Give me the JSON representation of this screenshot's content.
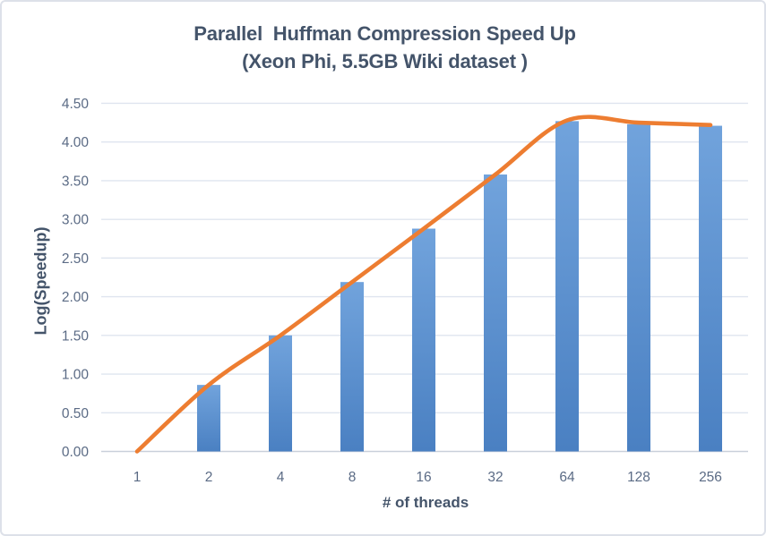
{
  "title": {
    "line1": "Parallel  Huffman Compression Speed Up",
    "line2": "(Xeon Phi, 5.5GB Wiki dataset )"
  },
  "chart_data": {
    "type": "bar",
    "title": "Parallel Huffman Compression Speed Up (Xeon Phi, 5.5GB Wiki dataset )",
    "categories": [
      "1",
      "2",
      "4",
      "8",
      "16",
      "32",
      "64",
      "128",
      "256"
    ],
    "values": [
      0.0,
      0.86,
      1.5,
      2.19,
      2.88,
      3.58,
      4.27,
      4.23,
      4.21
    ],
    "overlay_line": {
      "type": "line",
      "smooth": true,
      "values": [
        0.0,
        0.86,
        1.5,
        2.19,
        2.88,
        3.58,
        4.28,
        4.25,
        4.22
      ]
    },
    "xlabel": "# of threads",
    "ylabel": "Log(Speedup)",
    "ylim": [
      0,
      4.5
    ],
    "ytick_step": 0.5,
    "yticks": [
      "0.00",
      "0.50",
      "1.00",
      "1.50",
      "2.00",
      "2.50",
      "3.00",
      "3.50",
      "4.00",
      "4.50"
    ],
    "grid": true,
    "legend": "none"
  },
  "colors": {
    "bar_top": "#71a3dc",
    "bar_bottom": "#4a80c2",
    "line": "#ED7D31",
    "title": "#44546A",
    "axis_title": "#44546A",
    "tick_label": "#5b6b85",
    "gridline": "#dfe5ef",
    "axis_line": "#c9cfda",
    "background": "#ffffff",
    "frame_border": "#dde1e9"
  }
}
